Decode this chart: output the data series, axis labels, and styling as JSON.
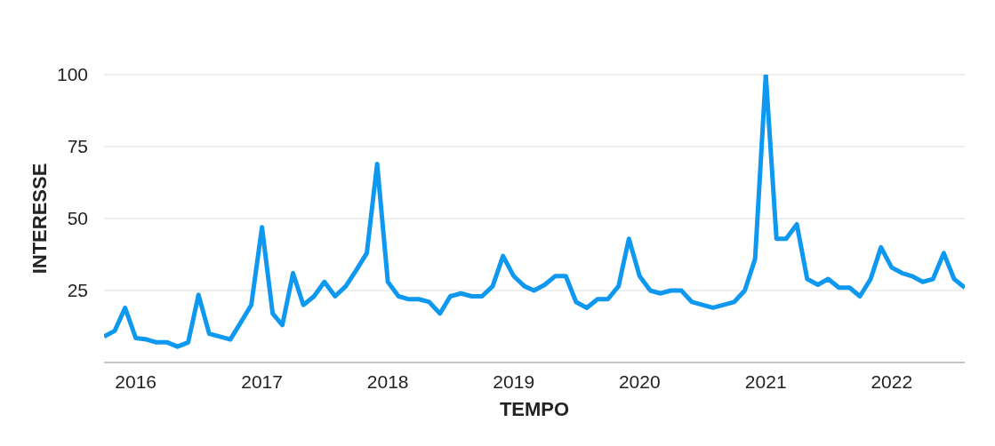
{
  "chart_data": {
    "type": "line",
    "xlabel": "TEMPO",
    "ylabel": "INTERESSE",
    "x": [
      "2015-10",
      "2015-11",
      "2015-12",
      "2016-01",
      "2016-02",
      "2016-03",
      "2016-04",
      "2016-05",
      "2016-06",
      "2016-07",
      "2016-08",
      "2016-09",
      "2016-10",
      "2016-11",
      "2016-12",
      "2017-01",
      "2017-02",
      "2017-03",
      "2017-04",
      "2017-05",
      "2017-06",
      "2017-07",
      "2017-08",
      "2017-09",
      "2017-10",
      "2017-11",
      "2017-12",
      "2018-01",
      "2018-02",
      "2018-03",
      "2018-04",
      "2018-05",
      "2018-06",
      "2018-07",
      "2018-08",
      "2018-09",
      "2018-10",
      "2018-11",
      "2018-12",
      "2019-01",
      "2019-02",
      "2019-03",
      "2019-04",
      "2019-05",
      "2019-06",
      "2019-07",
      "2019-08",
      "2019-09",
      "2019-10",
      "2019-11",
      "2019-12",
      "2020-01",
      "2020-02",
      "2020-03",
      "2020-04",
      "2020-05",
      "2020-06",
      "2020-07",
      "2020-08",
      "2020-09",
      "2020-10",
      "2020-11",
      "2020-12",
      "2021-01",
      "2021-02",
      "2021-03",
      "2021-04",
      "2021-05",
      "2021-06",
      "2021-07",
      "2021-08",
      "2021-09",
      "2021-10",
      "2021-11",
      "2021-12",
      "2022-01",
      "2022-02",
      "2022-03",
      "2022-04",
      "2022-05",
      "2022-06",
      "2022-07",
      "2022-08"
    ],
    "series": [
      {
        "color": "#0f98f0",
        "values": [
          9,
          11,
          19,
          8.5,
          8,
          7,
          7,
          5.5,
          7,
          23.5,
          10,
          9,
          8,
          14,
          20,
          47,
          17,
          13,
          31,
          20,
          23,
          28,
          23,
          26.5,
          32,
          38,
          69,
          28,
          23,
          22,
          22,
          21,
          17,
          23,
          24,
          23,
          23,
          26.5,
          37,
          30,
          26.5,
          25,
          27,
          30,
          30,
          21,
          19,
          22,
          22,
          26.5,
          43,
          30,
          25,
          24,
          25,
          25,
          21,
          20,
          19,
          20,
          21,
          25,
          36,
          100,
          43,
          43,
          48,
          29,
          27,
          29,
          26,
          26,
          23,
          29,
          40,
          33,
          31,
          30,
          28,
          29,
          38,
          29,
          26
        ]
      }
    ],
    "xlim": [
      "2015-10",
      "2022-08"
    ],
    "xticks": [
      {
        "value": "2016-01",
        "label": "2016"
      },
      {
        "value": "2017-01",
        "label": "2017"
      },
      {
        "value": "2018-01",
        "label": "2018"
      },
      {
        "value": "2019-01",
        "label": "2019"
      },
      {
        "value": "2020-01",
        "label": "2020"
      },
      {
        "value": "2021-01",
        "label": "2021"
      },
      {
        "value": "2022-01",
        "label": "2022"
      }
    ],
    "ylim": [
      0,
      100
    ],
    "yticks": [
      25,
      50,
      75,
      100
    ],
    "grid": "y"
  }
}
